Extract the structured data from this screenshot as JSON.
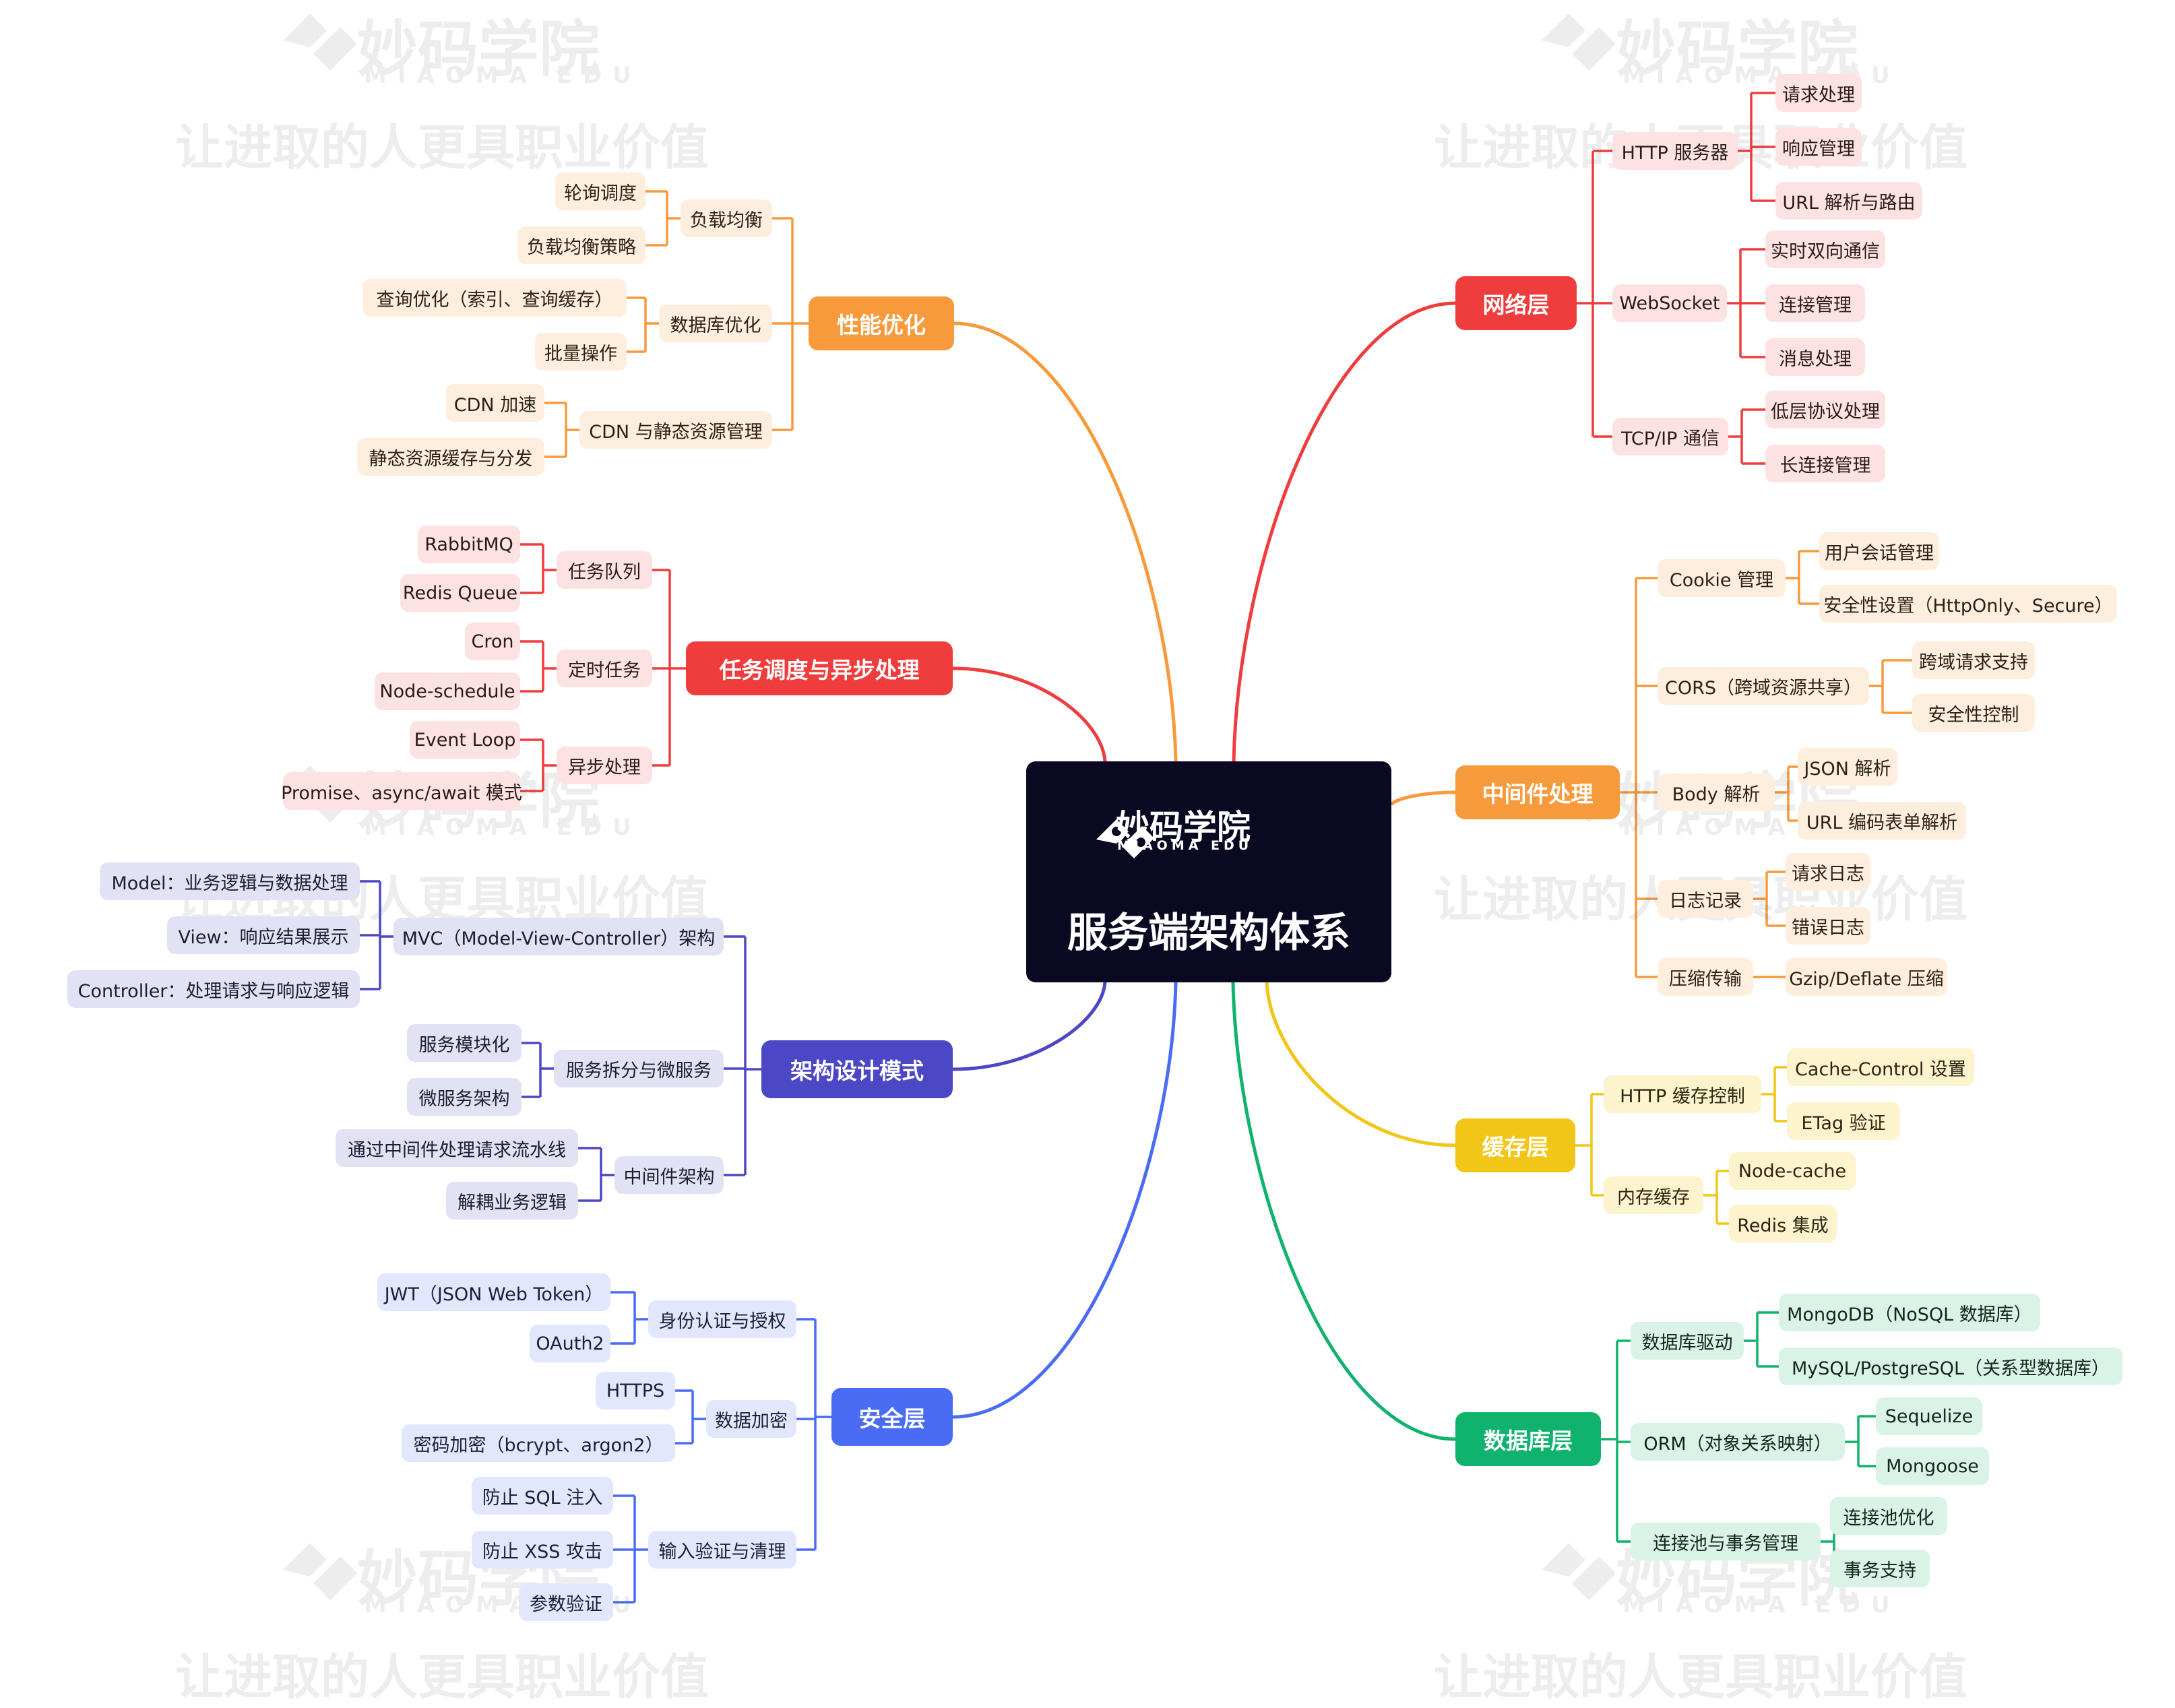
{
  "center": {
    "logo_cn": "妙码学院",
    "logo_en": "MIAOMA EDU",
    "title": "服务端架构体系"
  },
  "watermark": {
    "cn": "妙码学院",
    "en": "MIAOMA EDU",
    "slogan": "让进取的人更具职业价值"
  },
  "colors": {
    "center_bg": "#090a22",
    "network": "#ef3d3d",
    "middleware": "#f79a3b",
    "cache": "#f1c616",
    "database": "#0fb36e",
    "performance": "#f79a3b",
    "tasks": "#ef3d3d",
    "architecture": "#4c47c4",
    "security": "#4a6cf4"
  },
  "branches": {
    "network": {
      "label": "网络层",
      "children": [
        {
          "label": "HTTP 服务器",
          "children": [
            "请求处理",
            "响应管理",
            "URL 解析与路由"
          ]
        },
        {
          "label": "WebSocket",
          "children": [
            "实时双向通信",
            "连接管理",
            "消息处理"
          ]
        },
        {
          "label": "TCP/IP 通信",
          "children": [
            "低层协议处理",
            "长连接管理"
          ]
        }
      ]
    },
    "middleware": {
      "label": "中间件处理",
      "children": [
        {
          "label": "Cookie 管理",
          "children": [
            "用户会话管理",
            "安全性设置（HttpOnly、Secure）"
          ]
        },
        {
          "label": "CORS（跨域资源共享）",
          "children": [
            "跨域请求支持",
            "安全性控制"
          ]
        },
        {
          "label": "Body 解析",
          "children": [
            "JSON 解析",
            "URL 编码表单解析"
          ]
        },
        {
          "label": "日志记录",
          "children": [
            "请求日志",
            "错误日志"
          ]
        },
        {
          "label": "压缩传输",
          "children": [
            "Gzip/Deflate 压缩"
          ]
        }
      ]
    },
    "cache": {
      "label": "缓存层",
      "children": [
        {
          "label": "HTTP 缓存控制",
          "children": [
            "Cache-Control 设置",
            "ETag 验证"
          ]
        },
        {
          "label": "内存缓存",
          "children": [
            "Node-cache",
            "Redis 集成"
          ]
        }
      ]
    },
    "database": {
      "label": "数据库层",
      "children": [
        {
          "label": "数据库驱动",
          "children": [
            "MongoDB（NoSQL 数据库）",
            "MySQL/PostgreSQL（关系型数据库）"
          ]
        },
        {
          "label": "ORM（对象关系映射）",
          "children": [
            "Sequelize",
            "Mongoose"
          ]
        },
        {
          "label": "连接池与事务管理",
          "children": [
            "连接池优化",
            "事务支持"
          ]
        }
      ]
    },
    "performance": {
      "label": "性能优化",
      "children": [
        {
          "label": "负载均衡",
          "children": [
            "轮询调度",
            "负载均衡策略"
          ]
        },
        {
          "label": "数据库优化",
          "children": [
            "查询优化（索引、查询缓存）",
            "批量操作"
          ]
        },
        {
          "label": "CDN 与静态资源管理",
          "children": [
            "CDN 加速",
            "静态资源缓存与分发"
          ]
        }
      ]
    },
    "tasks": {
      "label": "任务调度与异步处理",
      "children": [
        {
          "label": "任务队列",
          "children": [
            "RabbitMQ",
            "Redis Queue"
          ]
        },
        {
          "label": "定时任务",
          "children": [
            "Cron",
            "Node-schedule"
          ]
        },
        {
          "label": "异步处理",
          "children": [
            "Event Loop",
            "Promise、async/await 模式"
          ]
        }
      ]
    },
    "architecture": {
      "label": "架构设计模式",
      "children": [
        {
          "label": "MVC（Model-View-Controller）架构",
          "children": [
            "Model：业务逻辑与数据处理",
            "View：响应结果展示",
            "Controller：处理请求与响应逻辑"
          ]
        },
        {
          "label": "服务拆分与微服务",
          "children": [
            "服务模块化",
            "微服务架构"
          ]
        },
        {
          "label": "中间件架构",
          "children": [
            "通过中间件处理请求流水线",
            "解耦业务逻辑"
          ]
        }
      ]
    },
    "security": {
      "label": "安全层",
      "children": [
        {
          "label": "身份认证与授权",
          "children": [
            "JWT（JSON Web Token）",
            "OAuth2"
          ]
        },
        {
          "label": "数据加密",
          "children": [
            "HTTPS",
            "密码加密（bcrypt、argon2）"
          ]
        },
        {
          "label": "输入验证与清理",
          "children": [
            "防止 SQL 注入",
            "防止 XSS 攻击",
            "参数验证"
          ]
        }
      ]
    }
  }
}
